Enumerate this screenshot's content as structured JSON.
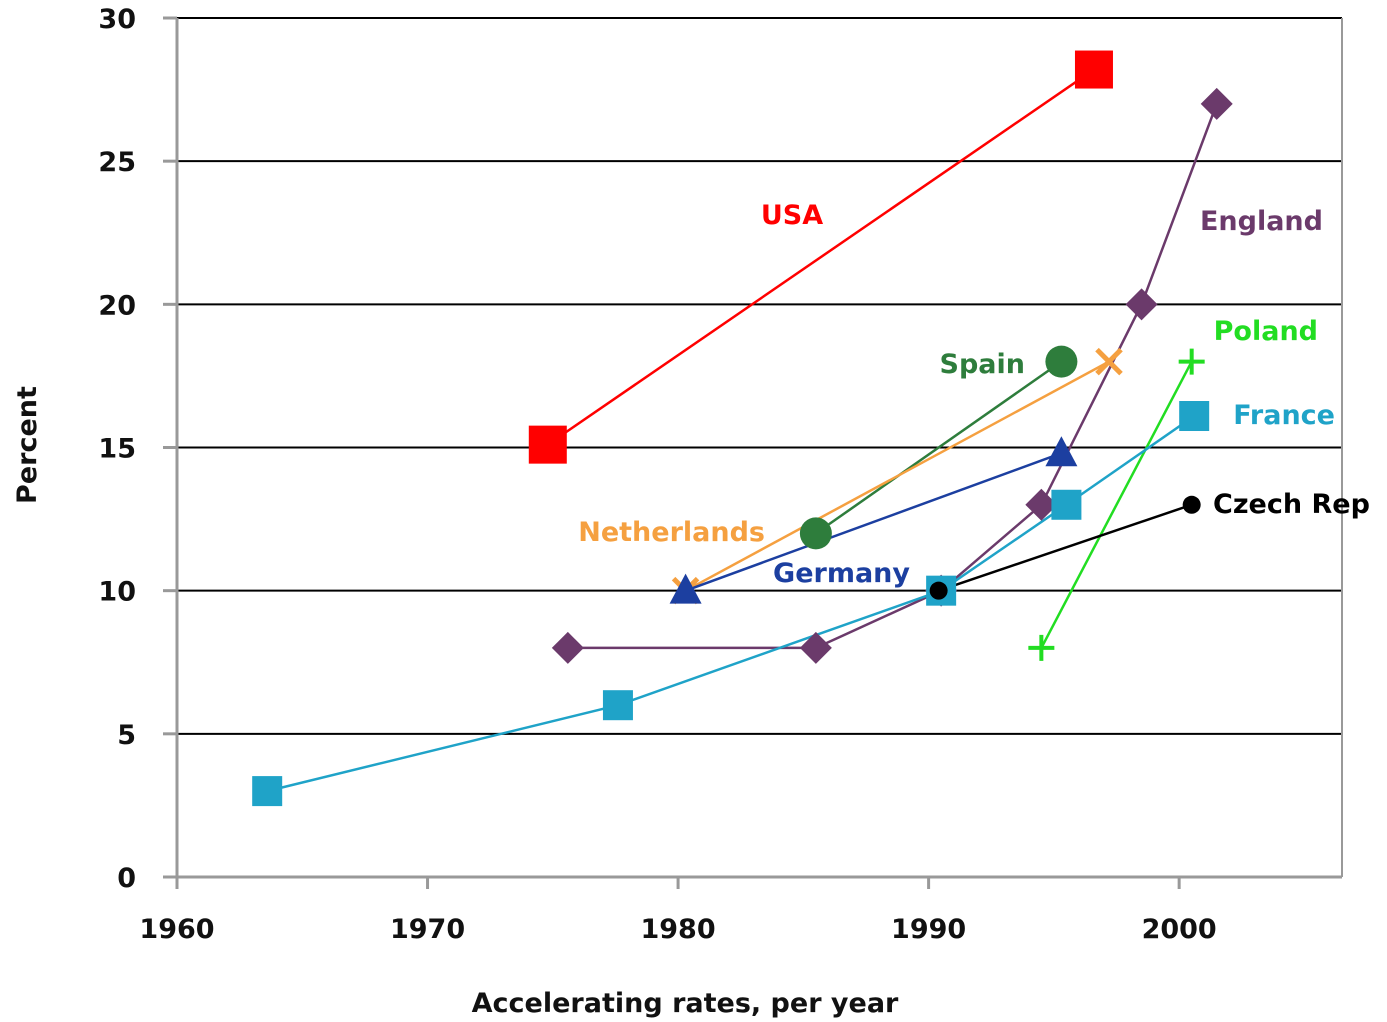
{
  "chart_data": {
    "type": "line",
    "title": "",
    "xlabel": "Accelerating rates, per year",
    "ylabel": "Percent",
    "xlim": [
      1960,
      2006.5
    ],
    "ylim": [
      0,
      30
    ],
    "x_ticks": [
      "1960",
      "1970",
      "1980",
      "1990",
      "2000"
    ],
    "y_ticks": [
      "0",
      "5",
      "10",
      "15",
      "20",
      "25",
      "30"
    ],
    "grid": "horizontal",
    "series": [
      {
        "name": "USA",
        "color": "#ff0000",
        "marker": "square-large",
        "x": [
          1974.8,
          1996.6
        ],
        "y": [
          15.1,
          28.2
        ]
      },
      {
        "name": "England",
        "color": "#6b3a6b",
        "marker": "diamond",
        "x": [
          1975.6,
          1985.5,
          1990.5,
          1994.5,
          1998.5,
          2001.5
        ],
        "y": [
          8.0,
          8.0,
          10.0,
          13.0,
          20.0,
          27.0
        ]
      },
      {
        "name": "Poland",
        "color": "#22dd22",
        "marker": "plus",
        "x": [
          1994.5,
          2000.5
        ],
        "y": [
          8.0,
          18.0
        ]
      },
      {
        "name": "Spain",
        "color": "#2e7d3c",
        "marker": "circle",
        "x": [
          1985.5,
          1995.3
        ],
        "y": [
          12.0,
          18.0
        ]
      },
      {
        "name": "Netherlands",
        "color": "#f5a040",
        "marker": "x",
        "x": [
          1980.3,
          1997.2
        ],
        "y": [
          10.0,
          18.0
        ]
      },
      {
        "name": "France",
        "color": "#1fa3c8",
        "marker": "square",
        "x": [
          1963.6,
          1977.6,
          1990.5,
          1995.5,
          2000.6
        ],
        "y": [
          3.0,
          6.0,
          10.0,
          13.0,
          16.1
        ]
      },
      {
        "name": "Czech Rep",
        "color": "#000000",
        "marker": "dot",
        "x": [
          1990.4,
          2000.5
        ],
        "y": [
          10.0,
          13.0
        ]
      },
      {
        "name": "Germany",
        "color": "#1c3fa0",
        "marker": "triangle",
        "x": [
          1980.3,
          1995.3
        ],
        "y": [
          10.0,
          14.8
        ]
      }
    ]
  }
}
